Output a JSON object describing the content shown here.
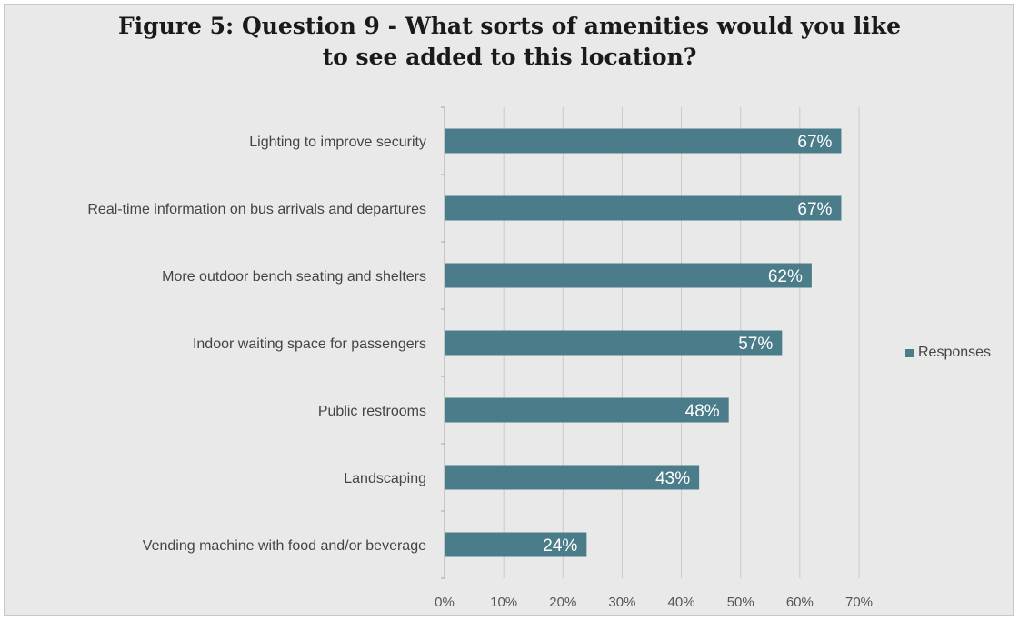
{
  "chart_data": {
    "type": "bar",
    "orientation": "horizontal",
    "title": "Figure 5:  Question 9 - What sorts of amenities would you like\nto see added to this location?",
    "categories": [
      "Lighting to improve security",
      "Real-time information on bus arrivals and departures",
      "More outdoor bench seating and shelters",
      "Indoor waiting space for passengers",
      "Public restrooms",
      "Landscaping",
      "Vending machine with food and/or beverage"
    ],
    "series": [
      {
        "name": "Responses",
        "values": [
          67,
          67,
          62,
          57,
          48,
          43,
          24
        ],
        "data_labels": [
          "67%",
          "67%",
          "62%",
          "57%",
          "48%",
          "43%",
          "24%"
        ],
        "color": "#4a7c8a"
      }
    ],
    "xlim": [
      0,
      70
    ],
    "x_ticks": [
      "0%",
      "10%",
      "20%",
      "30%",
      "40%",
      "50%",
      "60%",
      "70%"
    ],
    "grid": true,
    "legend": "right"
  }
}
